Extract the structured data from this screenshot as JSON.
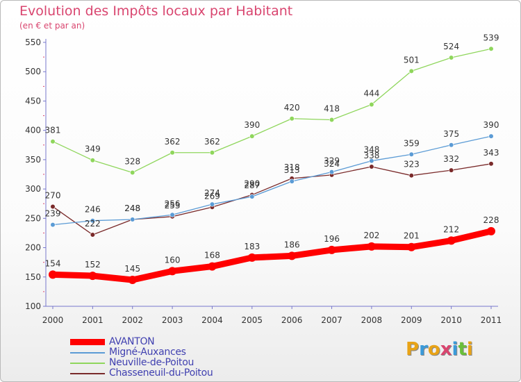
{
  "title": "Evolution des Impôts locaux par Habitant",
  "subtitle": "(en € et par an)",
  "logo": {
    "text": "Proxiti",
    "colors": [
      "#e8a317",
      "#3a9ad9",
      "#e8a317",
      "#d9456f",
      "#3a9ad9",
      "#6abf3a",
      "#e8a317"
    ]
  },
  "chart_data": {
    "type": "line",
    "x": [
      "2000",
      "2001",
      "2002",
      "2003",
      "2004",
      "2005",
      "2006",
      "2007",
      "2008",
      "2009",
      "2010",
      "2011"
    ],
    "ylim": [
      100,
      550
    ],
    "yticks": [
      100,
      150,
      200,
      250,
      300,
      350,
      400,
      450,
      500,
      550
    ],
    "grid": false,
    "legend_position": "bottom-left",
    "series": [
      {
        "name": "Neuville-de-Poitou",
        "color": "#8fd65c",
        "values": [
          381,
          349,
          328,
          362,
          362,
          390,
          420,
          418,
          444,
          501,
          524,
          539
        ]
      },
      {
        "name": "Chasseneuil-du-Poitou",
        "color": "#7a2a2a",
        "values": [
          270,
          222,
          248,
          253,
          269,
          290,
          318,
          324,
          338,
          323,
          332,
          343
        ]
      },
      {
        "name": "Migné-Auxances",
        "color": "#5b9bd5",
        "values": [
          239,
          246,
          248,
          256,
          274,
          287,
          313,
          329,
          348,
          359,
          375,
          390
        ]
      },
      {
        "name": "AVANTON",
        "color": "#ff0000",
        "values": [
          154,
          152,
          145,
          160,
          168,
          183,
          186,
          196,
          202,
          201,
          212,
          228
        ]
      }
    ],
    "legend": [
      {
        "name": "AVANTON",
        "color": "#ff0000"
      },
      {
        "name": "Migné-Auxances",
        "color": "#5b9bd5"
      },
      {
        "name": "Neuville-de-Poitou",
        "color": "#8fd65c"
      },
      {
        "name": "Chasseneuil-du-Poitou",
        "color": "#7a2a2a"
      }
    ]
  }
}
